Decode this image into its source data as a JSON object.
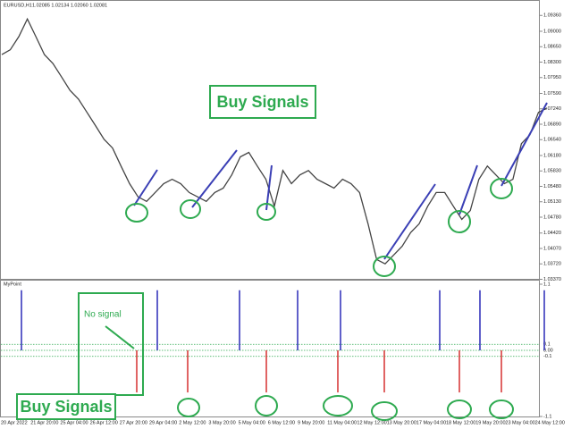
{
  "header": {
    "symbol": "EURUSD,H1",
    "ohlc": "1.02085 1.02134 1.02060 1.02081"
  },
  "price": {
    "type": "line",
    "color": "#444444",
    "values": [
      1.0847,
      1.0858,
      1.0888,
      1.0928,
      1.0888,
      1.0847,
      1.0827,
      1.0797,
      1.0766,
      1.0746,
      1.0716,
      1.0686,
      1.0655,
      1.0635,
      1.0594,
      1.0554,
      1.0524,
      1.0514,
      1.0534,
      1.0554,
      1.0564,
      1.0554,
      1.0534,
      1.0524,
      1.0514,
      1.0534,
      1.0544,
      1.0574,
      1.0615,
      1.0625,
      1.0594,
      1.0564,
      1.0503,
      1.0584,
      1.0554,
      1.0574,
      1.0584,
      1.0564,
      1.0554,
      1.0544,
      1.0564,
      1.0554,
      1.0534,
      1.0463,
      1.0382,
      1.0372,
      1.0392,
      1.0412,
      1.0443,
      1.0463,
      1.0503,
      1.0534,
      1.0534,
      1.0503,
      1.0473,
      1.0493,
      1.0564,
      1.0594,
      1.0574,
      1.0554,
      1.0564,
      1.0645,
      1.0665,
      1.0716,
      1.0726
    ],
    "ylim": [
      1.0338,
      1.0969
    ],
    "yticks": [
      {
        "value": 1.0337,
        "label": "1.03370"
      },
      {
        "value": 1.0372,
        "label": "1.03720"
      },
      {
        "value": 1.0407,
        "label": "1.04070"
      },
      {
        "value": 1.0442,
        "label": "1.04420"
      },
      {
        "value": 1.0478,
        "label": "1.04780"
      },
      {
        "value": 1.0513,
        "label": "1.05130"
      },
      {
        "value": 1.0548,
        "label": "1.05480"
      },
      {
        "value": 1.0583,
        "label": "1.05830"
      },
      {
        "value": 1.0618,
        "label": "1.06180"
      },
      {
        "value": 1.0654,
        "label": "1.06540"
      },
      {
        "value": 1.0689,
        "label": "1.06890"
      },
      {
        "value": 1.0724,
        "label": "1.07240"
      },
      {
        "value": 1.0759,
        "label": "1.07590"
      },
      {
        "value": 1.0795,
        "label": "1.07950"
      },
      {
        "value": 1.083,
        "label": "1.08300"
      },
      {
        "value": 1.0865,
        "label": "1.08650"
      },
      {
        "value": 1.09,
        "label": "1.09000"
      },
      {
        "value": 1.0936,
        "label": "1.09360"
      }
    ]
  },
  "indicator": {
    "type": "bar",
    "name": "MyPoint",
    "up_color": "#2b2bb8",
    "down_color": "#d63030",
    "values": [
      1,
      -0.7,
      1,
      -0.7,
      1,
      -0.7,
      1,
      -0.7,
      1,
      -0.7,
      1,
      -0.7,
      1,
      -0.7,
      1
    ],
    "ylim": [
      -1.1,
      1.1
    ],
    "yticks": [
      1.1,
      0.1,
      {
        "value": 0,
        "label": "0.00"
      },
      -0.1,
      -1.1
    ]
  },
  "x_labels": [
    "20 Apr 2022",
    "21 Apr 20:00",
    "25 Apr 04:00",
    "26 Apr 12:00",
    "27 Apr 20:00",
    "29 Apr 04:00",
    "2 May 12:00",
    "3 May 20:00",
    "5 May 04:00",
    "6 May 12:00",
    "9 May 20:00",
    "11 May 04:00",
    "12 May 12:00",
    "13 May 20:00",
    "17 May 04:00",
    "18 May 12:00",
    "19 May 20:00",
    "23 May 04:00",
    "24 May 12:00"
  ],
  "annotations": {
    "buy_signals_main": "Buy Signals",
    "buy_signals_indicator": "Buy Signals",
    "no_signal": "No signal"
  }
}
